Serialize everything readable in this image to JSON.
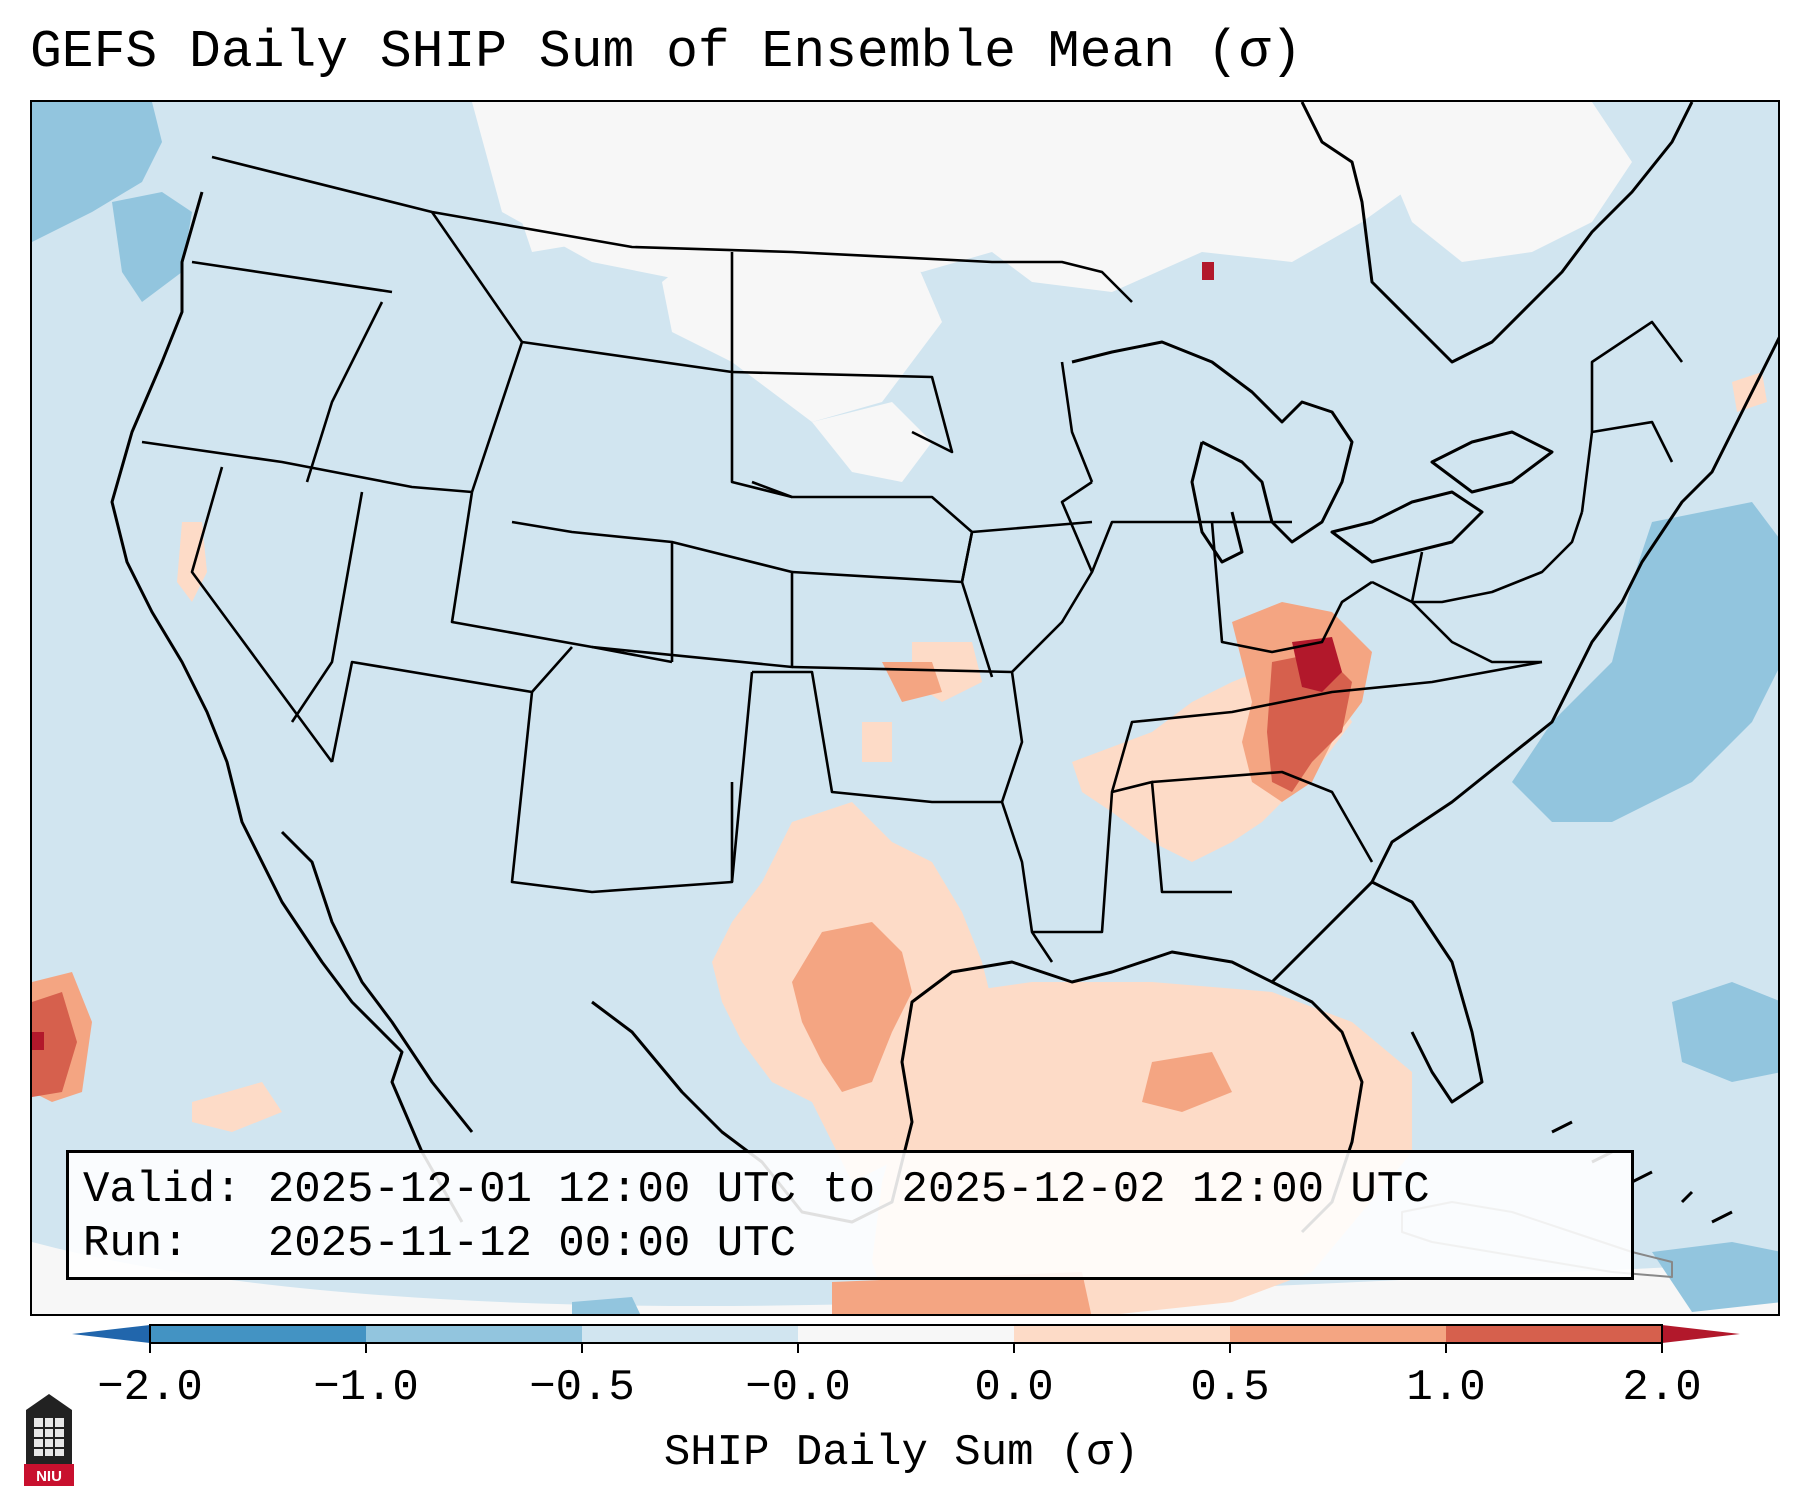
{
  "title": "GEFS Daily SHIP Sum of Ensemble Mean (σ)",
  "info": {
    "valid_label": "Valid:",
    "valid_value": "2025-12-01 12:00 UTC to 2025-12-02 12:00 UTC",
    "run_label": "Run:",
    "run_value": "2025-11-12 00:00 UTC"
  },
  "colorbar": {
    "label": "SHIP Daily Sum (σ)",
    "ticks": [
      "−2.0",
      "−1.0",
      "−0.5",
      "−0.0",
      "0.0",
      "0.5",
      "1.0",
      "2.0"
    ],
    "colors": [
      "#4393c3",
      "#92c5de",
      "#d1e5f0",
      "#f7f7f7",
      "#fddbc7",
      "#f4a582",
      "#d6604d"
    ],
    "under_color": "#2166ac",
    "over_color": "#b2182b"
  },
  "logo": {
    "text": "NIU"
  }
}
